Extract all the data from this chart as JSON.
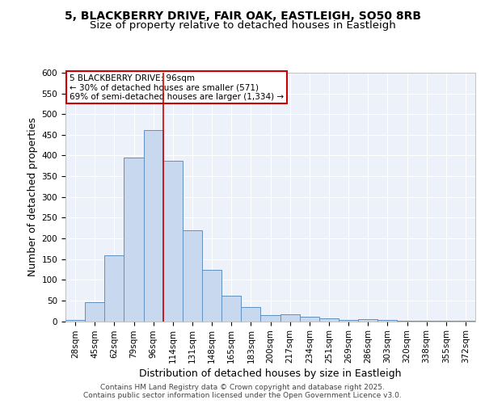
{
  "title_line1": "5, BLACKBERRY DRIVE, FAIR OAK, EASTLEIGH, SO50 8RB",
  "title_line2": "Size of property relative to detached houses in Eastleigh",
  "xlabel": "Distribution of detached houses by size in Eastleigh",
  "ylabel": "Number of detached properties",
  "categories": [
    "28sqm",
    "45sqm",
    "62sqm",
    "79sqm",
    "96sqm",
    "114sqm",
    "131sqm",
    "148sqm",
    "165sqm",
    "183sqm",
    "200sqm",
    "217sqm",
    "234sqm",
    "251sqm",
    "269sqm",
    "286sqm",
    "303sqm",
    "320sqm",
    "338sqm",
    "355sqm",
    "372sqm"
  ],
  "values": [
    3,
    45,
    160,
    395,
    462,
    388,
    220,
    123,
    62,
    35,
    15,
    16,
    10,
    7,
    3,
    5,
    2,
    1,
    1,
    1,
    1
  ],
  "bar_color": "#c8d8ee",
  "bar_edge_color": "#6090c0",
  "vline_x": 4.5,
  "vline_color": "#cc0000",
  "annotation_text": "5 BLACKBERRY DRIVE: 96sqm\n← 30% of detached houses are smaller (571)\n69% of semi-detached houses are larger (1,334) →",
  "annotation_box_color": "#ffffff",
  "annotation_box_edge": "#cc0000",
  "ylim": [
    0,
    600
  ],
  "yticks": [
    0,
    50,
    100,
    150,
    200,
    250,
    300,
    350,
    400,
    450,
    500,
    550,
    600
  ],
  "footer_line1": "Contains HM Land Registry data © Crown copyright and database right 2025.",
  "footer_line2": "Contains public sector information licensed under the Open Government Licence v3.0.",
  "bg_color": "#edf1f9",
  "grid_color": "#ffffff",
  "title_fontsize": 10,
  "subtitle_fontsize": 9.5,
  "axis_label_fontsize": 9,
  "tick_fontsize": 7.5,
  "annotation_fontsize": 7.5,
  "footer_fontsize": 6.5
}
